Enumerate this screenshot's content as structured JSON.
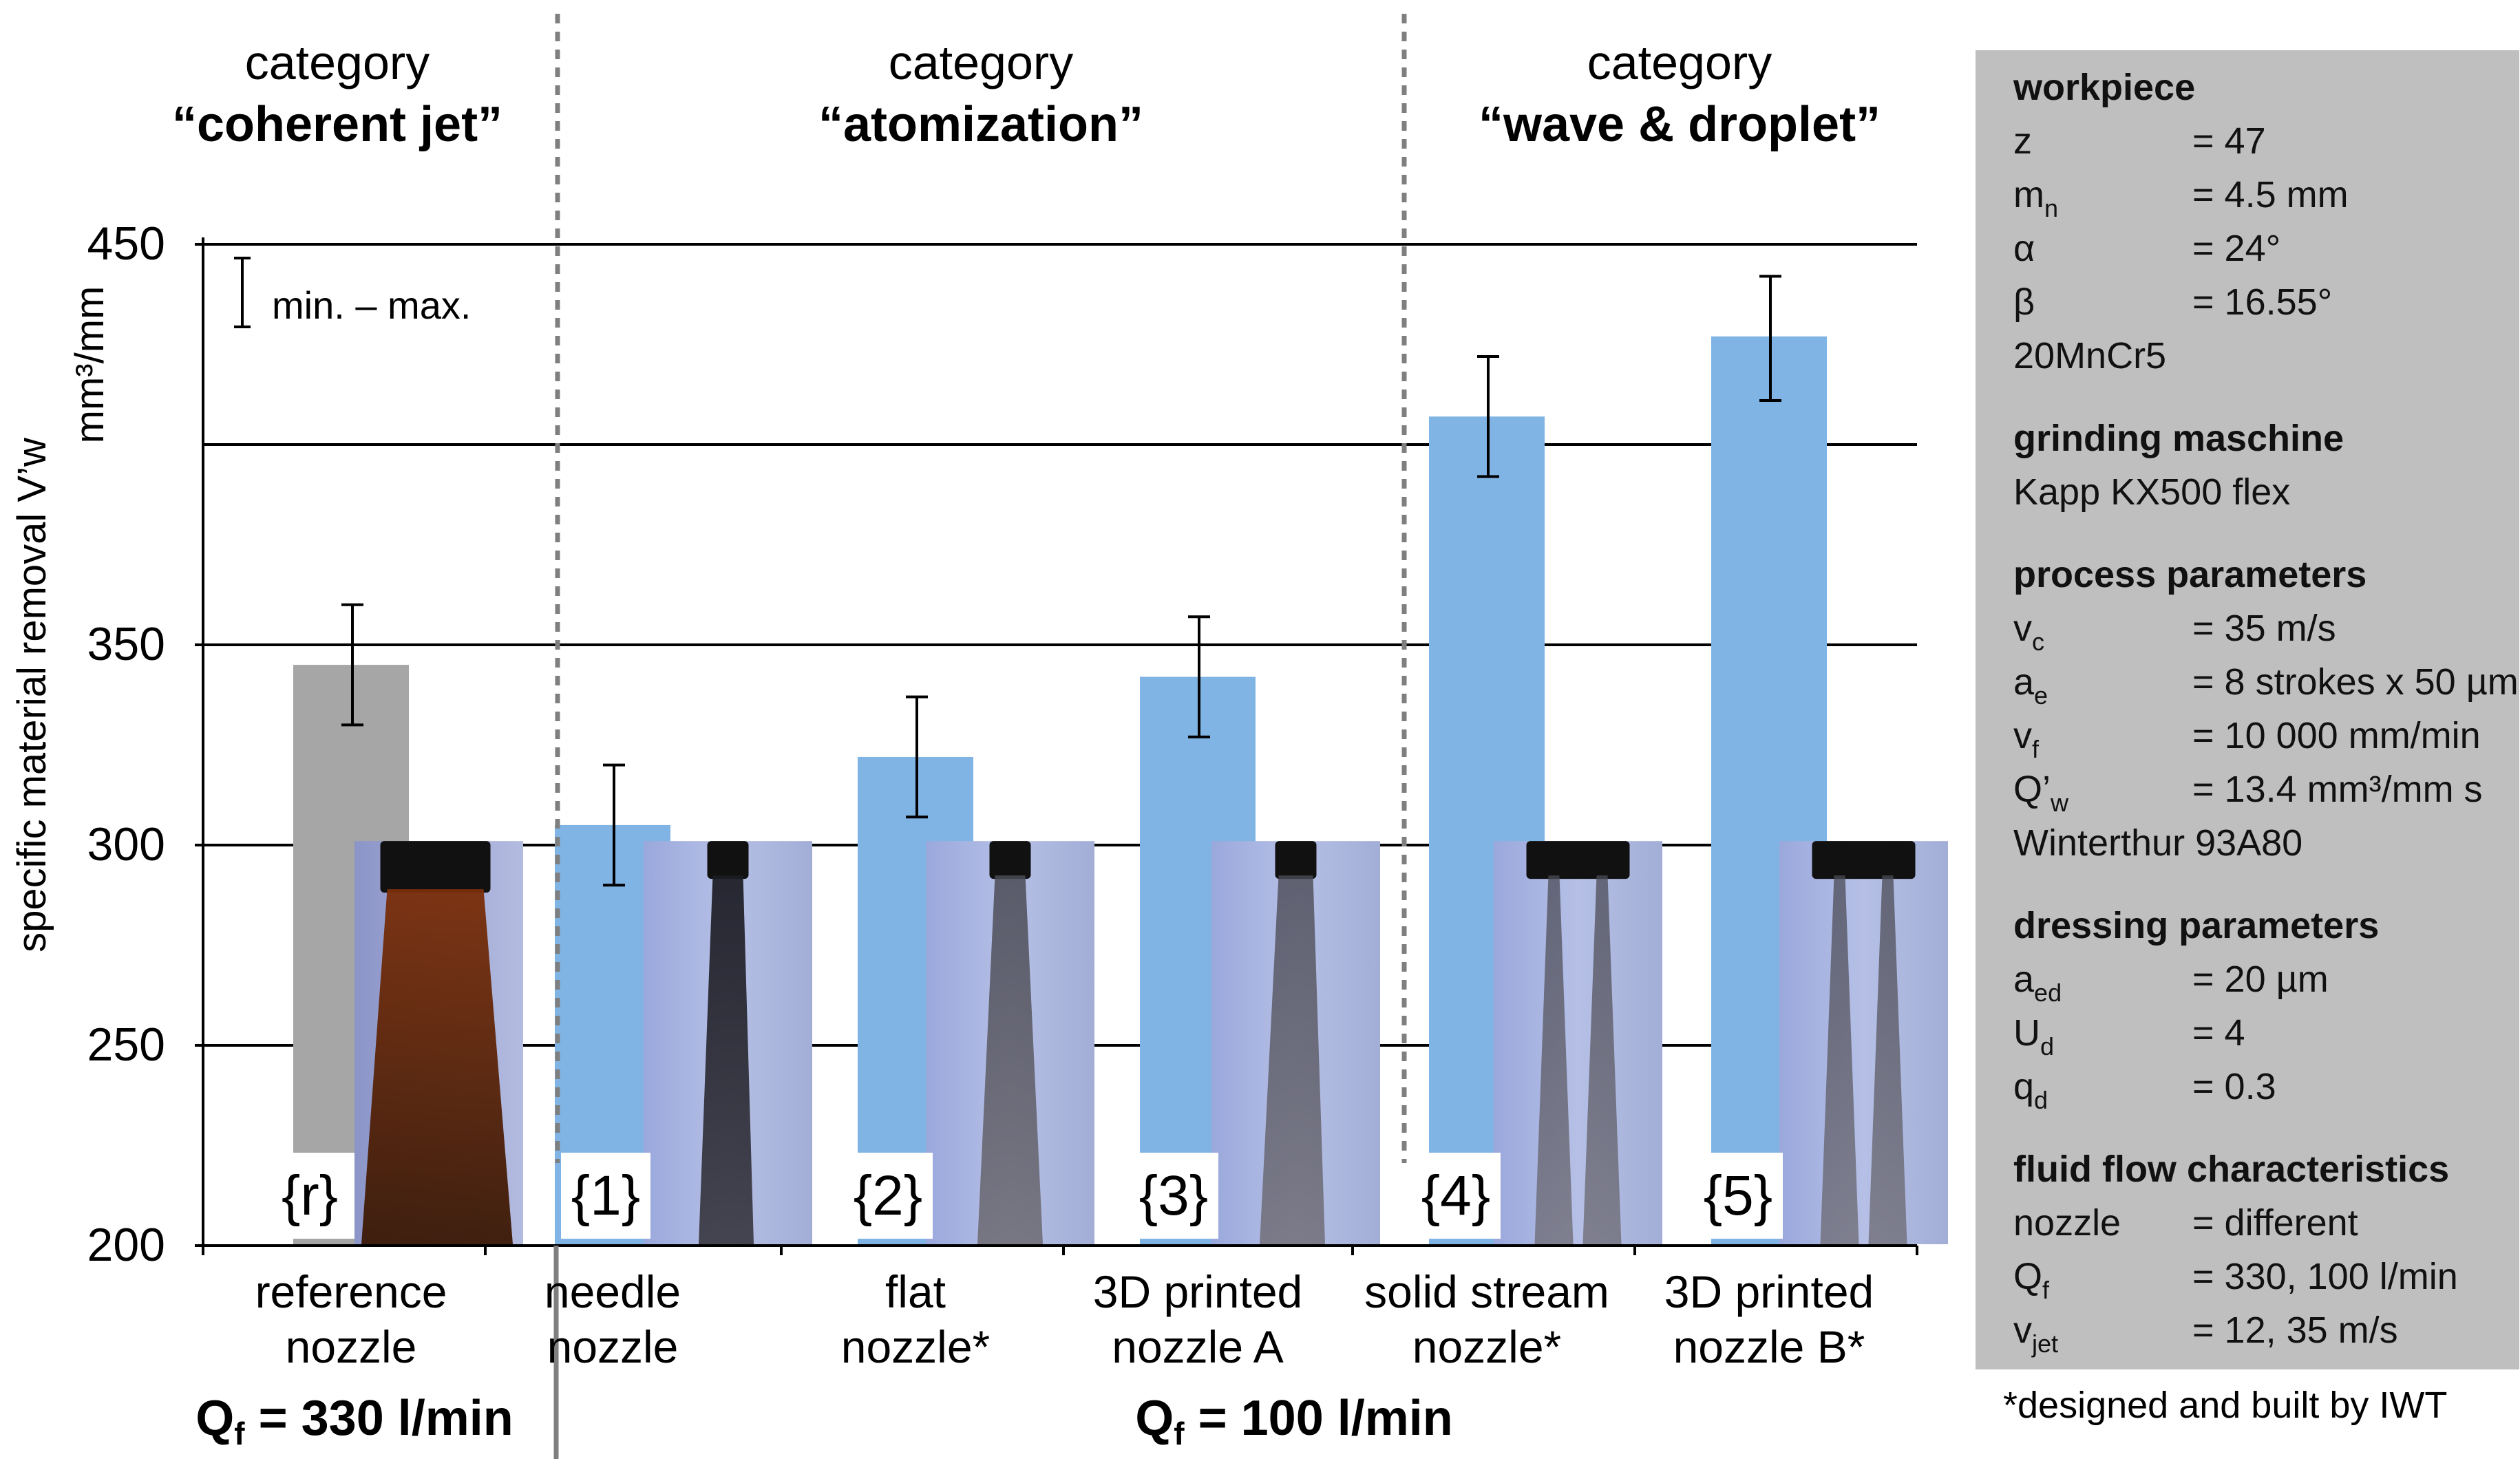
{
  "chart_data": {
    "type": "bar",
    "ylabel": "specific material removal V’w",
    "yunit": "mm³/mm",
    "ylim": [
      200,
      450
    ],
    "yticks": [
      200,
      250,
      300,
      350,
      450
    ],
    "grid": true,
    "legend_label": "min. – max.",
    "categories": [
      {
        "id": "{r}",
        "line1": "reference",
        "line2": "nozzle",
        "value": 345,
        "min": 330,
        "max": 360,
        "color": "#a6a6a6",
        "group": 0
      },
      {
        "id": "{1}",
        "line1": "needle",
        "line2": "nozzle",
        "value": 305,
        "min": 290,
        "max": 320,
        "color": "#80b4e4",
        "group": 1
      },
      {
        "id": "{2}",
        "line1": "flat",
        "line2": "nozzle*",
        "value": 322,
        "min": 307,
        "max": 337,
        "color": "#80b4e4",
        "group": 1
      },
      {
        "id": "{3}",
        "line1": "3D printed",
        "line2": "nozzle A",
        "value": 342,
        "min": 327,
        "max": 357,
        "color": "#80b4e4",
        "group": 1
      },
      {
        "id": "{4}",
        "line1": "solid stream",
        "line2": "nozzle*",
        "value": 407,
        "min": 392,
        "max": 422,
        "color": "#80b4e4",
        "group": 2
      },
      {
        "id": "{5}",
        "line1": "3D printed",
        "line2": "nozzle B*",
        "value": 427,
        "min": 411,
        "max": 442,
        "color": "#80b4e4",
        "group": 2
      }
    ],
    "category_groups": [
      {
        "line1": "category",
        "line2": "“coherent jet”"
      },
      {
        "line1": "category",
        "line2": "“atomization”"
      },
      {
        "line1": "category",
        "line2": "“wave & droplet”"
      }
    ],
    "flow_groups": [
      {
        "label": "Q",
        "sub": "f",
        "rest": " = 330 l/min"
      },
      {
        "label": "Q",
        "sub": "f",
        "rest": " = 100 l/min"
      }
    ]
  },
  "side_panel": {
    "sections": [
      {
        "title": "workpiece",
        "rows": [
          {
            "sym": "z",
            "sub": "",
            "val": "= 47"
          },
          {
            "sym": "m",
            "sub": "n",
            "val": "= 4.5 mm"
          },
          {
            "sym": "α",
            "sub": "",
            "val": "= 24°"
          },
          {
            "sym": "β",
            "sub": "",
            "val": "= 16.55°"
          },
          {
            "sym": "20MnCr5",
            "sub": "",
            "val": ""
          }
        ]
      },
      {
        "title": "grinding maschine",
        "rows": [
          {
            "sym": "Kapp KX500 flex",
            "sub": "",
            "val": ""
          }
        ]
      },
      {
        "title": "process parameters",
        "rows": [
          {
            "sym": "v",
            "sub": "c",
            "val": "= 35 m/s"
          },
          {
            "sym": "a",
            "sub": "e",
            "val": "= 8 strokes x 50 µm"
          },
          {
            "sym": "v",
            "sub": "f",
            "val": "= 10 000 mm/min"
          },
          {
            "sym": "Q’",
            "sub": "w",
            "val": "= 13.4 mm³/mm s"
          },
          {
            "sym": "Winterthur 93A80",
            "sub": "",
            "val": ""
          }
        ]
      },
      {
        "title": "dressing parameters",
        "rows": [
          {
            "sym": "a",
            "sub": "ed",
            "val": "= 20 µm"
          },
          {
            "sym": "U",
            "sub": "d",
            "val": "= 4"
          },
          {
            "sym": "q",
            "sub": "d",
            "val": "= 0.3"
          }
        ]
      },
      {
        "title": "fluid flow characteristics",
        "rows": [
          {
            "sym": "nozzle",
            "sub": "",
            "val": "= different"
          },
          {
            "sym": "Q",
            "sub": "f",
            "val": "= 330, 100 l/min"
          },
          {
            "sym": "v",
            "sub": "jet",
            "val": "= 12, 35 m/s"
          }
        ]
      }
    ],
    "footnote": "*designed and built by IWT"
  },
  "colors": {
    "reference_bar": "#a6a6a6",
    "nozzle_bar": "#80b4e4",
    "panel_bg": "#bfbfbf",
    "photo_bg": "#a8b4d8"
  }
}
